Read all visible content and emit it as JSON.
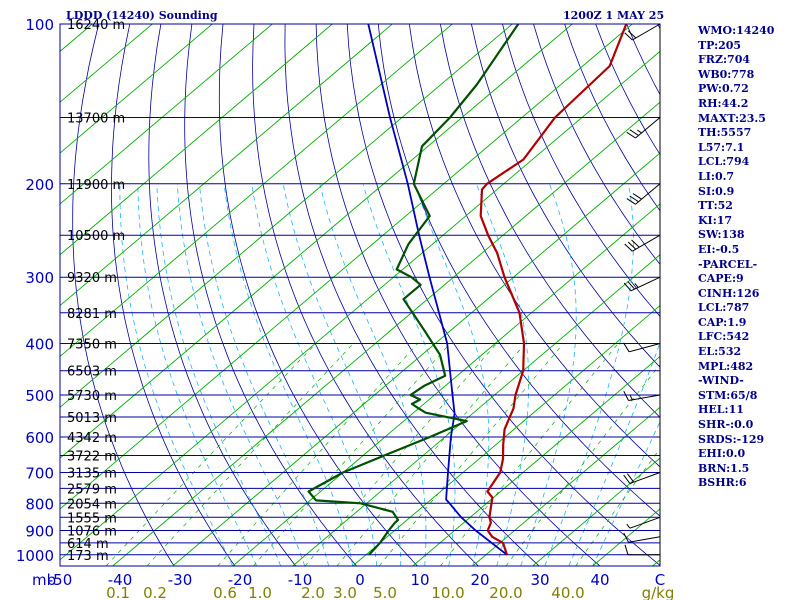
{
  "header": {
    "station": "LDDD (14240) Sounding",
    "time": "1200Z  1 MAY 25"
  },
  "indices": [
    "WMO:14240",
    "TP:205",
    "FRZ:704",
    "WB0:778",
    "PW:0.72",
    "RH:44.2",
    "MAXT:23.5",
    "TH:5557",
    "L57:7.1",
    "LCL:794",
    "LI:0.7",
    "SI:0.9",
    "TT:52",
    "KI:17",
    "SW:138",
    "EI:-0.5",
    "-PARCEL-",
    "CAPE:9",
    "CINH:126",
    "LCL:787",
    "CAP:1.9",
    "LFC:542",
    "EL:532",
    "MPL:482",
    "-WIND-",
    "STM:65/8",
    "HEL:11",
    "SHR-:0.0",
    "SRDS:-129",
    "EHI:0.0",
    "BRN:1.5",
    "BSHR:6"
  ],
  "colors": {
    "isobar": "#0000a0",
    "isotherm": "#00008b",
    "dry_adiabat": "#0000a0",
    "moist_adiabat": "#1eb4ff",
    "mixing_ratio": "#00b000",
    "temperature": "#b00000",
    "dewpoint": "#005000",
    "parcel": "#0000c0",
    "axis_text": "#0000c0",
    "mixing_text": "#808000",
    "wind": "#000000"
  },
  "chart_data": {
    "type": "skew-t",
    "pressure_unit": "mb",
    "xlim": [
      -50,
      50
    ],
    "ylim": [
      1000,
      100
    ],
    "pressure_ticks": [
      "100",
      "200",
      "300",
      "400",
      "500",
      "600",
      "700",
      "800",
      "900",
      "1000"
    ],
    "temperature_ticks": [
      "-50",
      "-40",
      "-30",
      "-20",
      "-10",
      "0",
      "10",
      "20",
      "30",
      "40",
      "C"
    ],
    "mixing_ratio_labels": [
      "0.1",
      "0.2",
      "0.6",
      "1.0",
      "2.0",
      "3.0",
      "5.0",
      "10.0",
      "20.0",
      "40.0",
      "g/kg"
    ],
    "heights": [
      {
        "p": 100,
        "label": "16240 m"
      },
      {
        "p": 150,
        "label": "13700 m"
      },
      {
        "p": 200,
        "label": "11900 m"
      },
      {
        "p": 250,
        "label": "10500 m"
      },
      {
        "p": 300,
        "label": "9320 m"
      },
      {
        "p": 350,
        "label": "8281 m"
      },
      {
        "p": 400,
        "label": "7350 m"
      },
      {
        "p": 450,
        "label": "6503 m"
      },
      {
        "p": 500,
        "label": "5730 m"
      },
      {
        "p": 550,
        "label": "5013 m"
      },
      {
        "p": 600,
        "label": "4342 m"
      },
      {
        "p": 650,
        "label": "3722 m"
      },
      {
        "p": 700,
        "label": "3135 m"
      },
      {
        "p": 750,
        "label": "2579 m"
      },
      {
        "p": 800,
        "label": "2054 m"
      },
      {
        "p": 850,
        "label": "1555 m"
      },
      {
        "p": 900,
        "label": "1076 m"
      },
      {
        "p": 950,
        "label": "614 m"
      },
      {
        "p": 1000,
        "label": "173 m"
      }
    ],
    "temperature": [
      {
        "p": 1000,
        "t": 23.5
      },
      {
        "p": 950,
        "t": 20.5
      },
      {
        "p": 925,
        "t": 17.5
      },
      {
        "p": 900,
        "t": 15.5
      },
      {
        "p": 870,
        "t": 14.5
      },
      {
        "p": 850,
        "t": 13.2
      },
      {
        "p": 800,
        "t": 10.8
      },
      {
        "p": 780,
        "t": 9.8
      },
      {
        "p": 760,
        "t": 7.8
      },
      {
        "p": 700,
        "t": 6.2
      },
      {
        "p": 660,
        "t": 4.0
      },
      {
        "p": 620,
        "t": 1.2
      },
      {
        "p": 580,
        "t": -1.6
      },
      {
        "p": 530,
        "t": -4.2
      },
      {
        "p": 500,
        "t": -6.5
      },
      {
        "p": 450,
        "t": -10.0
      },
      {
        "p": 400,
        "t": -15.2
      },
      {
        "p": 350,
        "t": -22.0
      },
      {
        "p": 300,
        "t": -31.5
      },
      {
        "p": 270,
        "t": -37.5
      },
      {
        "p": 250,
        "t": -42.5
      },
      {
        "p": 230,
        "t": -47.5
      },
      {
        "p": 205,
        "t": -52.5
      },
      {
        "p": 200,
        "t": -52.8
      },
      {
        "p": 180,
        "t": -51.5
      },
      {
        "p": 150,
        "t": -54.5
      },
      {
        "p": 120,
        "t": -55.5
      },
      {
        "p": 100,
        "t": -61.0
      }
    ],
    "dewpoint": [
      {
        "p": 1000,
        "t": 0.5
      },
      {
        "p": 950,
        "t": 0.0
      },
      {
        "p": 900,
        "t": -1.0
      },
      {
        "p": 870,
        "t": -1.5
      },
      {
        "p": 860,
        "t": -1.5
      },
      {
        "p": 830,
        "t": -4.0
      },
      {
        "p": 800,
        "t": -11.0
      },
      {
        "p": 790,
        "t": -19.0
      },
      {
        "p": 760,
        "t": -22.0
      },
      {
        "p": 700,
        "t": -20.0
      },
      {
        "p": 650,
        "t": -16.5
      },
      {
        "p": 600,
        "t": -12.5
      },
      {
        "p": 560,
        "t": -9.5
      },
      {
        "p": 540,
        "t": -18.0
      },
      {
        "p": 530,
        "t": -20.0
      },
      {
        "p": 520,
        "t": -22.0
      },
      {
        "p": 510,
        "t": -21.5
      },
      {
        "p": 500,
        "t": -24.0
      },
      {
        "p": 480,
        "t": -23.5
      },
      {
        "p": 460,
        "t": -22.0
      },
      {
        "p": 420,
        "t": -27.0
      },
      {
        "p": 380,
        "t": -34.0
      },
      {
        "p": 330,
        "t": -44.0
      },
      {
        "p": 310,
        "t": -44.0
      },
      {
        "p": 300,
        "t": -47.0
      },
      {
        "p": 290,
        "t": -51.0
      },
      {
        "p": 260,
        "t": -54.0
      },
      {
        "p": 230,
        "t": -56.0
      },
      {
        "p": 200,
        "t": -65.0
      },
      {
        "p": 170,
        "t": -71.0
      },
      {
        "p": 150,
        "t": -72.0
      },
      {
        "p": 130,
        "t": -74.0
      },
      {
        "p": 100,
        "t": -79.0
      }
    ],
    "parcel": [
      {
        "p": 1000,
        "t": 23.5
      },
      {
        "p": 900,
        "t": 13.5
      },
      {
        "p": 850,
        "t": 8.5
      },
      {
        "p": 800,
        "t": 3.8
      },
      {
        "p": 787,
        "t": 2.5
      },
      {
        "p": 700,
        "t": -2.5
      },
      {
        "p": 600,
        "t": -9.0
      },
      {
        "p": 542,
        "t": -13.0
      },
      {
        "p": 500,
        "t": -17.0
      },
      {
        "p": 400,
        "t": -28.0
      },
      {
        "p": 300,
        "t": -44.0
      },
      {
        "p": 250,
        "t": -54.0
      },
      {
        "p": 200,
        "t": -66.0
      },
      {
        "p": 150,
        "t": -82.0
      },
      {
        "p": 100,
        "t": -104.0
      }
    ],
    "winds": [
      {
        "p": 1000,
        "dir": 270,
        "spd": 10
      },
      {
        "p": 925,
        "dir": 260,
        "spd": 10
      },
      {
        "p": 850,
        "dir": 250,
        "spd": 5
      },
      {
        "p": 700,
        "dir": 250,
        "spd": 20
      },
      {
        "p": 500,
        "dir": 260,
        "spd": 15
      },
      {
        "p": 400,
        "dir": 255,
        "spd": 10
      },
      {
        "p": 300,
        "dir": 245,
        "spd": 25
      },
      {
        "p": 250,
        "dir": 240,
        "spd": 30
      },
      {
        "p": 200,
        "dir": 230,
        "spd": 30
      },
      {
        "p": 150,
        "dir": 230,
        "spd": 25
      },
      {
        "p": 100,
        "dir": 240,
        "spd": 20
      }
    ]
  }
}
